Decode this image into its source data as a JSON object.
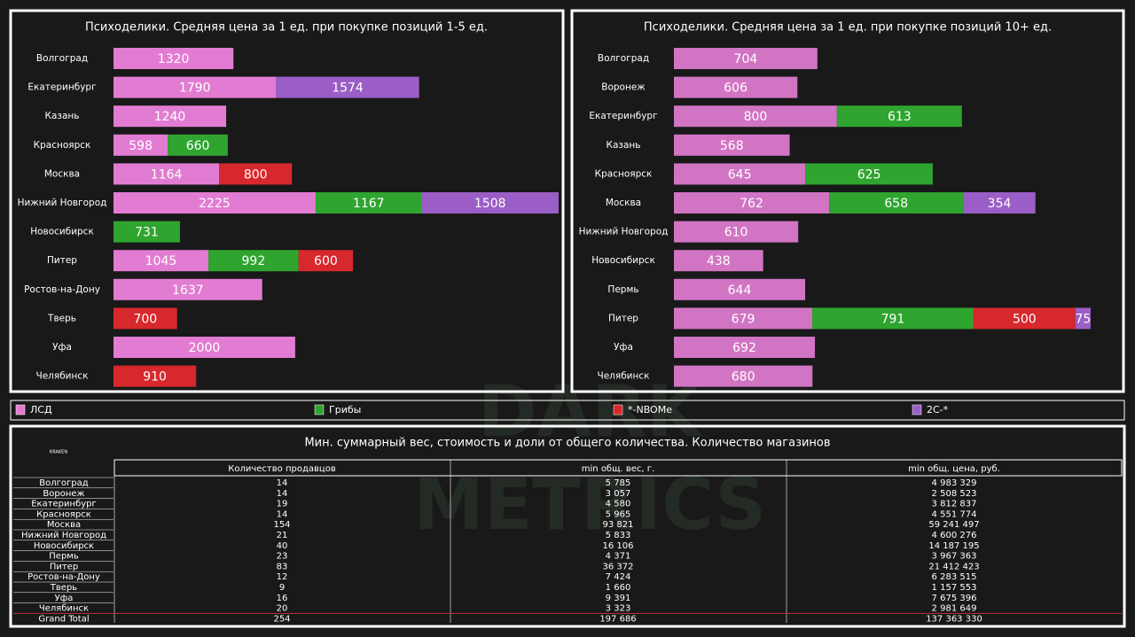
{
  "chart_data": [
    {
      "type": "stacked-bar-horizontal",
      "title": "Психоделики. Средняя цена за 1 ед.  при покупке позиций 1-5 ед.",
      "categories": [
        "Волгоград",
        "Екатеринбург",
        "Казань",
        "Красноярск",
        "Москва",
        "Нижний Новгород",
        "Новосибирск",
        "Питер",
        "Ростов-на-Дону",
        "Тверь",
        "Уфа",
        "Челябинск"
      ],
      "series": [
        {
          "name": "ЛСД",
          "color": "#e27cd2",
          "values": [
            1320,
            1790,
            1240,
            598,
            1164,
            2225,
            null,
            1045,
            1637,
            null,
            2000,
            null
          ]
        },
        {
          "name": "Грибы",
          "color": "#2fa52f",
          "values": [
            null,
            null,
            null,
            660,
            null,
            1167,
            731,
            992,
            null,
            null,
            null,
            null
          ]
        },
        {
          "name": "*-NBOMe",
          "color": "#d7282d",
          "values": [
            null,
            null,
            null,
            null,
            800,
            null,
            null,
            600,
            null,
            700,
            null,
            910
          ]
        },
        {
          "name": "2C-*",
          "color": "#9a5ec6",
          "values": [
            null,
            1574,
            null,
            null,
            null,
            1508,
            null,
            null,
            null,
            null,
            null,
            null
          ]
        }
      ]
    },
    {
      "type": "stacked-bar-horizontal",
      "title": "Психоделики. Средняя цена за 1 ед.  при покупке позиций 10+ ед.",
      "categories": [
        "Волгоград",
        "Воронеж",
        "Екатеринбург",
        "Казань",
        "Красноярск",
        "Москва",
        "Нижний Новгород",
        "Новосибирск",
        "Пермь",
        "Питер",
        "Уфа",
        "Челябинск"
      ],
      "series": [
        {
          "color": "#d174c3",
          "values": [
            704,
            606,
            800,
            568,
            645,
            762,
            610,
            438,
            644,
            679,
            692,
            680
          ]
        },
        {
          "color": "#2fa52f",
          "values": [
            null,
            null,
            613,
            null,
            625,
            658,
            null,
            null,
            null,
            791,
            null,
            null
          ]
        },
        {
          "color": "#d7282d",
          "values": [
            null,
            null,
            null,
            null,
            null,
            null,
            null,
            null,
            null,
            500,
            null,
            null
          ]
        },
        {
          "color": "#9a5ec6",
          "values": [
            null,
            null,
            null,
            null,
            null,
            354,
            null,
            null,
            null,
            75,
            null,
            null
          ]
        }
      ]
    }
  ],
  "watermark": [
    "DARK",
    "METRICS"
  ],
  "logo": "KRAKEN",
  "table": {
    "title": "Мин. суммарный вес, стоимость и доли от общего количества. Количество магазинов",
    "columns": [
      "Количество продавцов",
      "min общ. вес, г.",
      "min общ. цена, руб."
    ],
    "rows": [
      [
        "Волгоград",
        "14",
        "5 785",
        "4 983 329"
      ],
      [
        "Воронеж",
        "14",
        "3 057",
        "2 508 523"
      ],
      [
        "Екатеринбург",
        "19",
        "4 580",
        "3 812 837"
      ],
      [
        "Красноярск",
        "14",
        "5 965",
        "4 551 774"
      ],
      [
        "Москва",
        "154",
        "93 821",
        "59 241 497"
      ],
      [
        "Нижний Новгород",
        "21",
        "5 833",
        "4 600 276"
      ],
      [
        "Новосибирск",
        "40",
        "16 106",
        "14 187 195"
      ],
      [
        "Пермь",
        "23",
        "4 371",
        "3 967 363"
      ],
      [
        "Питер",
        "83",
        "36 372",
        "21 412 423"
      ],
      [
        "Ростов-на-Дону",
        "12",
        "7 424",
        "6 283 515"
      ],
      [
        "Тверь",
        "9",
        "1 660",
        "1 157 553"
      ],
      [
        "Уфа",
        "16",
        "9 391",
        "7 675 396"
      ],
      [
        "Челябинск",
        "20",
        "3 323",
        "2 981 649"
      ]
    ],
    "total": [
      "Grand Total",
      "254",
      "197 686",
      "137 363 330"
    ]
  }
}
